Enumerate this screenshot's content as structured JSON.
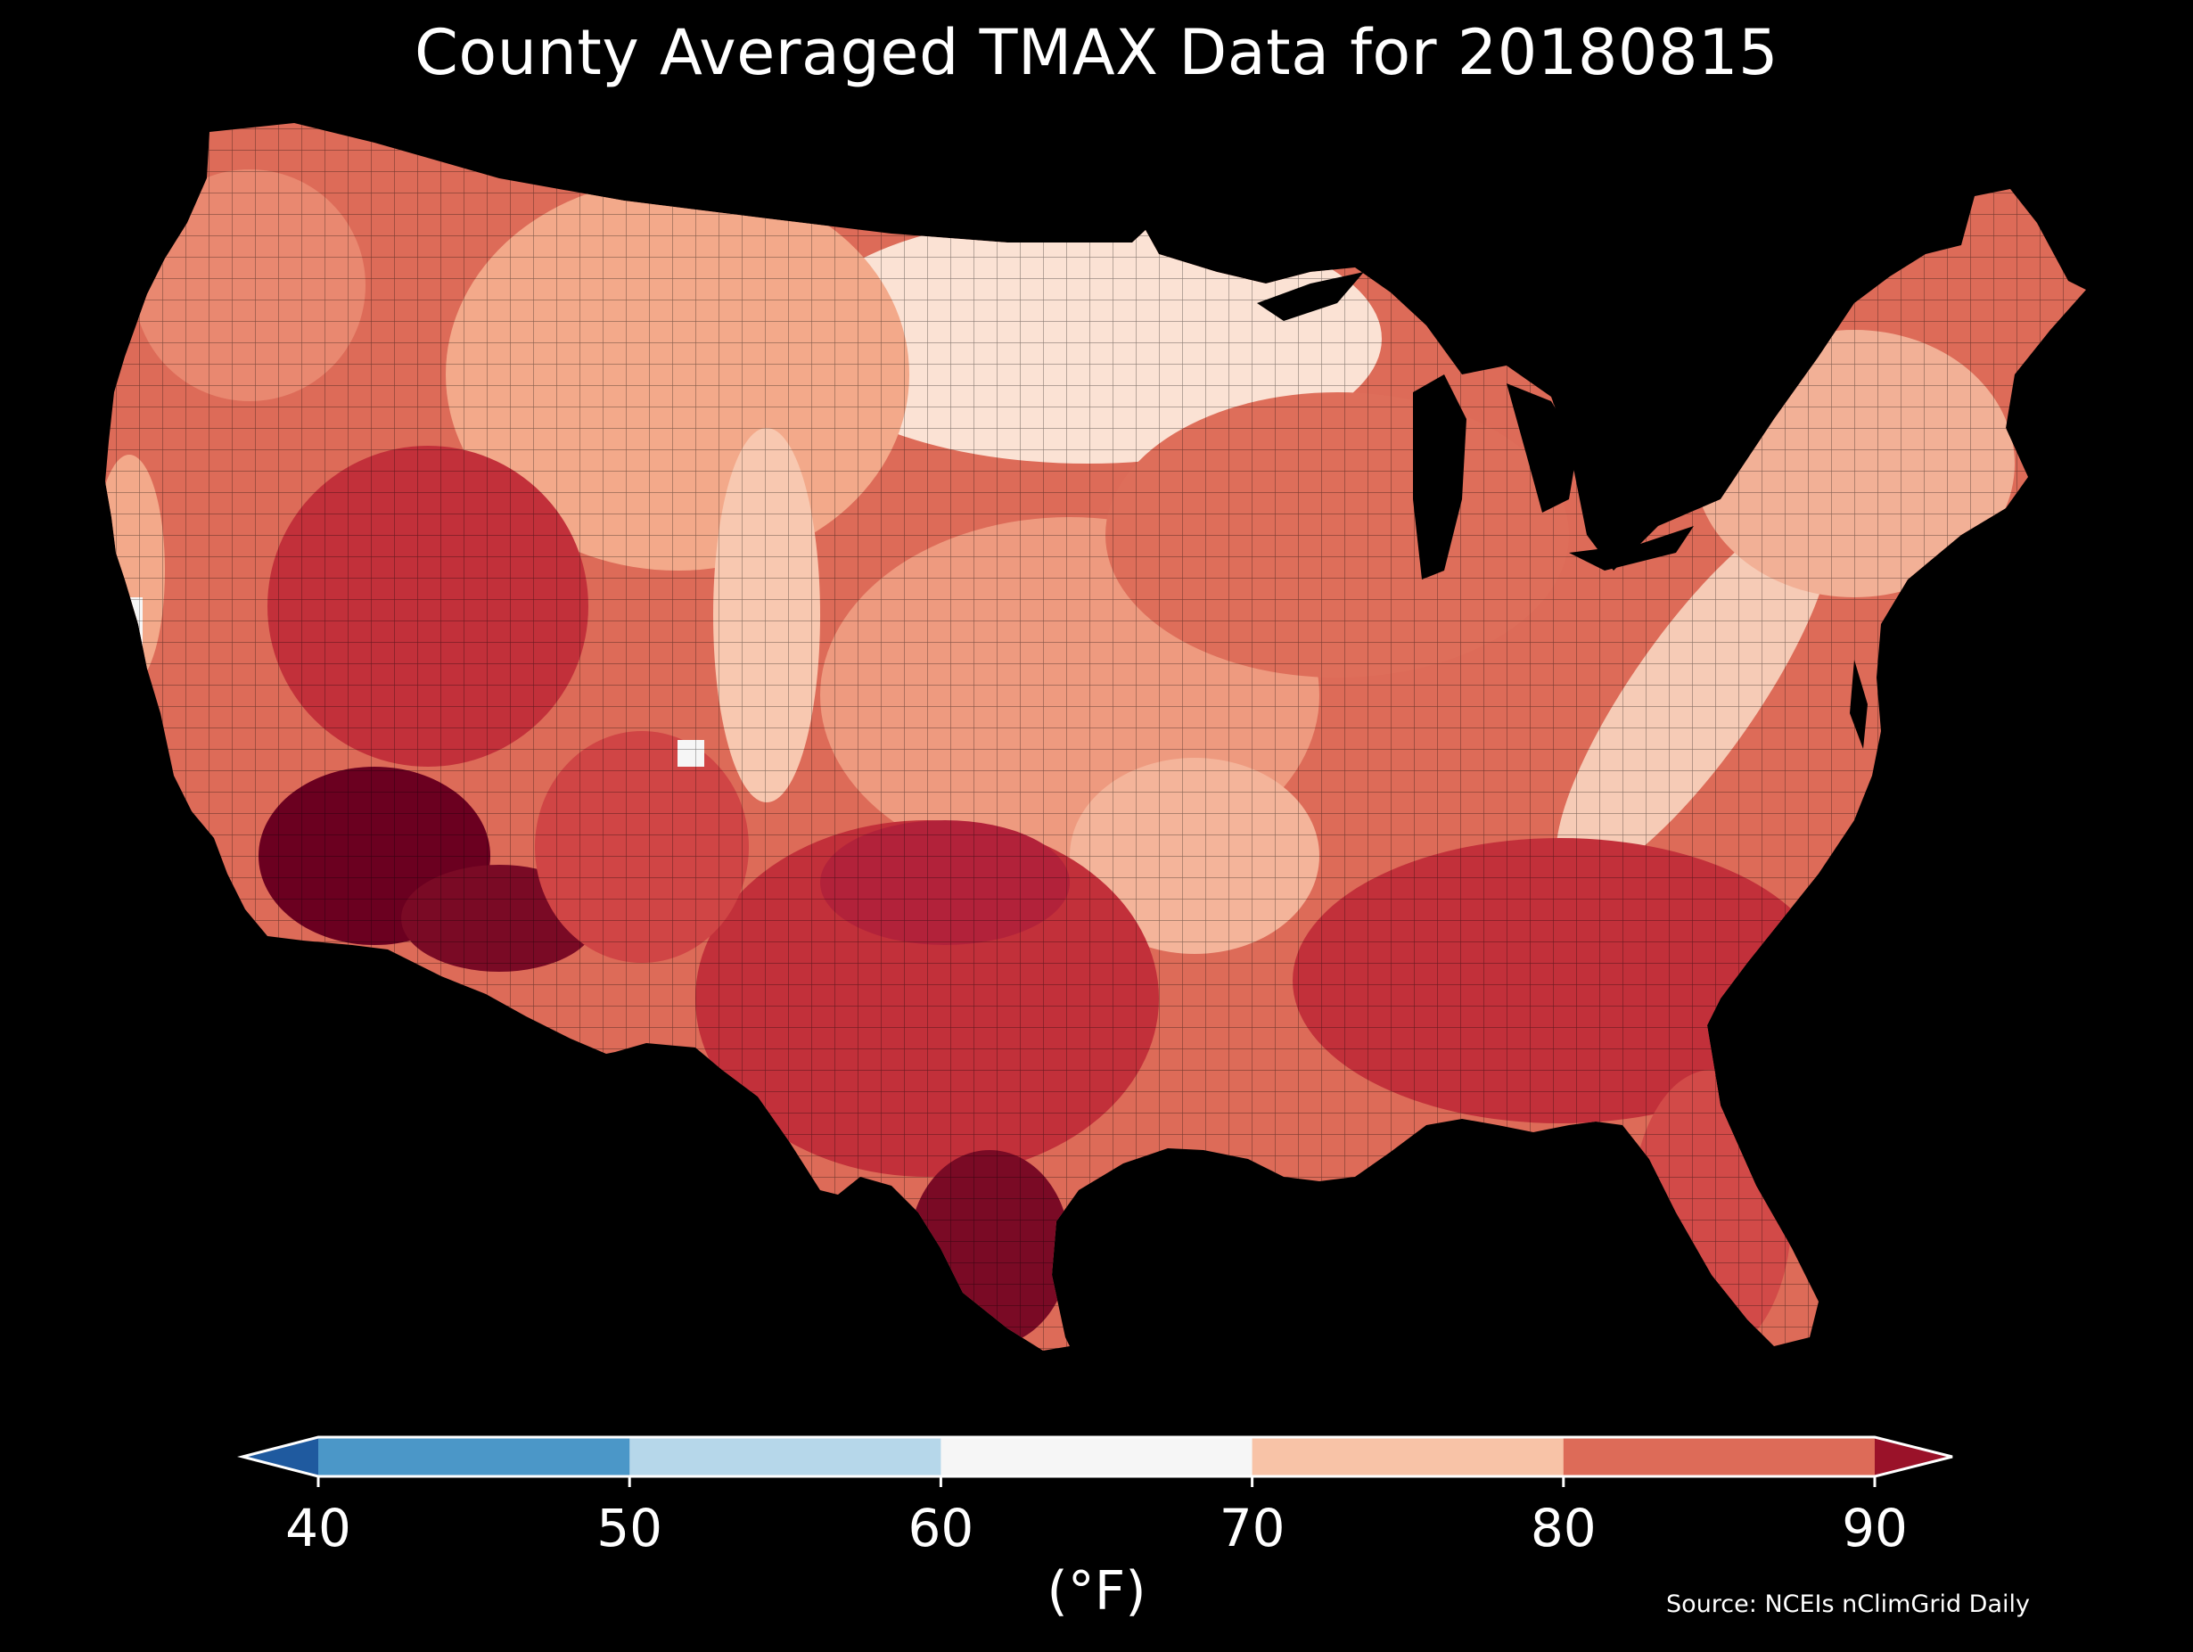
{
  "title": "County Averaged TMAX Data for 20180815",
  "source": "Source: NCEIs nClimGrid Daily",
  "colorbar": {
    "units": "(°F)",
    "ticks": [
      "40",
      "50",
      "60",
      "70",
      "80",
      "90"
    ],
    "bins": [
      {
        "range": "<40",
        "color": "#1f5a9f"
      },
      {
        "range": "40-50",
        "color": "#4b97c8"
      },
      {
        "range": "50-60",
        "color": "#b6d7ea"
      },
      {
        "range": "60-70",
        "color": "#f6f6f6"
      },
      {
        "range": "70-80",
        "color": "#f8c3a7"
      },
      {
        "range": "80-90",
        "color": "#dd6b58"
      },
      {
        "range": ">90",
        "color": "#9a1229"
      }
    ]
  },
  "map": {
    "region": "Contiguous United States",
    "unit_type": "county",
    "background_color": "#000000",
    "land_palette": {
      "cool": "#fbe2d4",
      "mild": "#f3a98a",
      "warm": "#db6855",
      "hot": "#c2303a",
      "hottest": "#6b0020"
    }
  }
}
